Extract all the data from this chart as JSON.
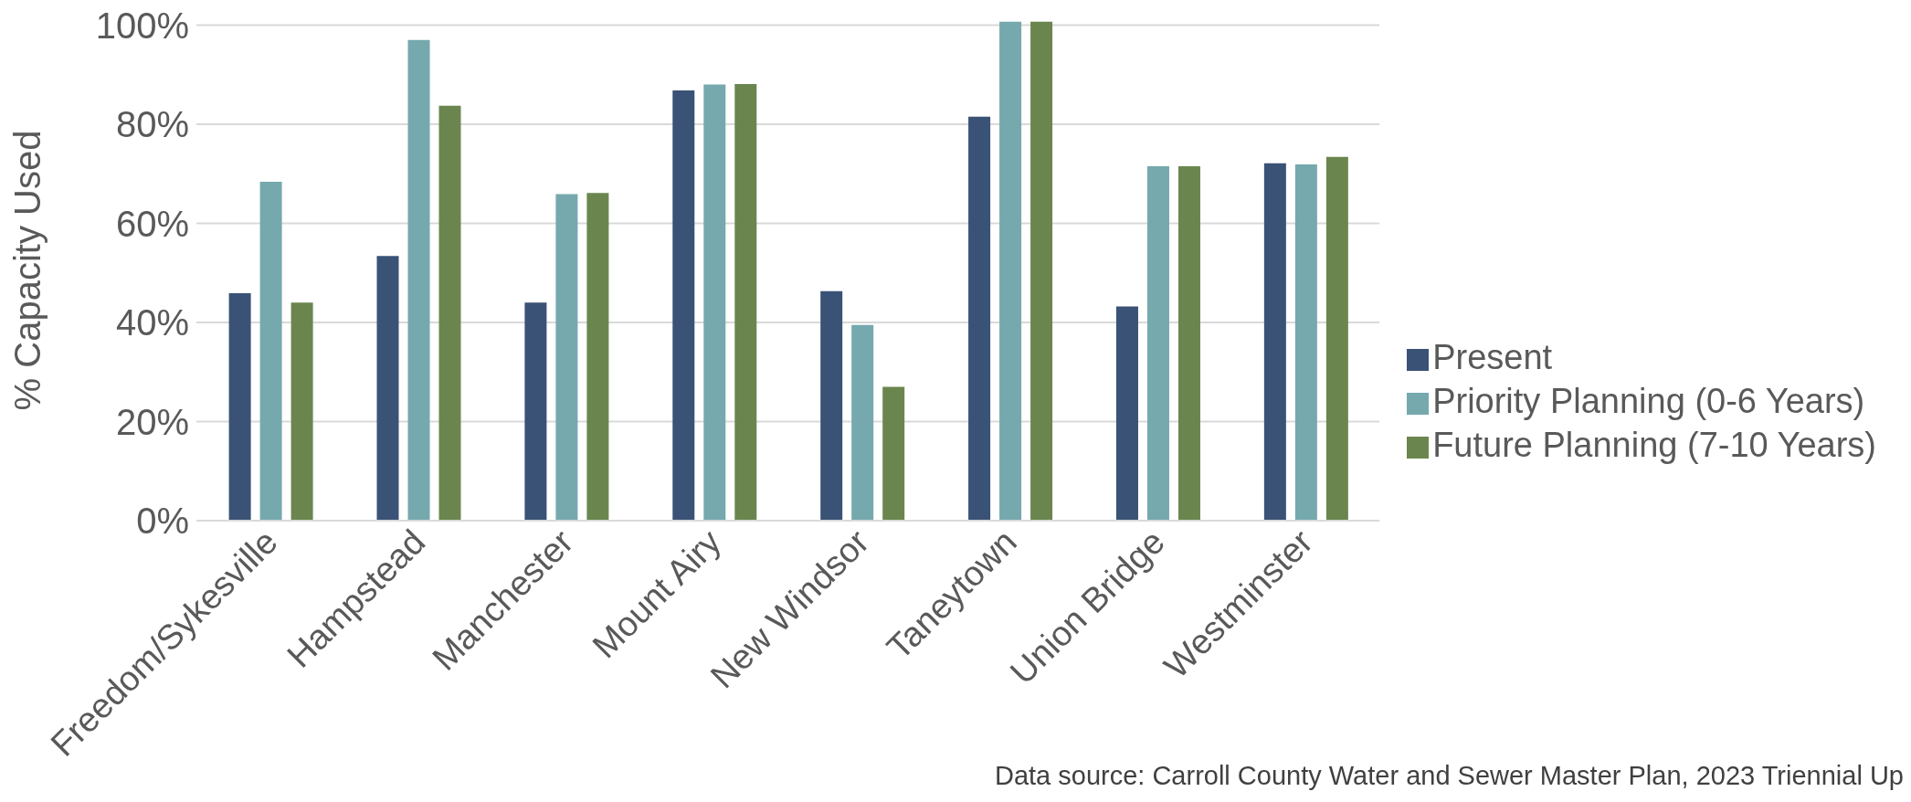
{
  "chart_data": {
    "type": "bar",
    "ylabel": "% Capacity Used",
    "categories": [
      "Freedom/Sykesville",
      "Hampstead",
      "Manchester",
      "Mount Airy",
      "New Windsor",
      "Taneytown",
      "Union Bridge",
      "Westminster"
    ],
    "series": [
      {
        "name": "Present",
        "color": "#3a5275",
        "values": [
          45.9,
          53.4,
          44.0,
          86.8,
          46.3,
          81.5,
          43.2,
          72.1
        ]
      },
      {
        "name": "Priority Planning (0-6 Years)",
        "color": "#75a9ad",
        "values": [
          68.4,
          97.0,
          65.9,
          88.0,
          39.5,
          100.7,
          71.5,
          71.9
        ]
      },
      {
        "name": "Future Planning (7-10 Years)",
        "color": "#6a864e",
        "values": [
          44.0,
          83.7,
          66.1,
          88.1,
          27.0,
          100.7,
          71.5,
          73.4
        ]
      }
    ],
    "ylim": [
      0,
      101
    ],
    "yticks": [
      {
        "value": 0,
        "label": "0%"
      },
      {
        "value": 20,
        "label": "20%"
      },
      {
        "value": 40,
        "label": "40%"
      },
      {
        "value": 60,
        "label": "60%"
      },
      {
        "value": 80,
        "label": "80%"
      },
      {
        "value": 100,
        "label": "100%"
      }
    ],
    "grid": "y",
    "legend": "right",
    "annotations": [
      "Data source: Carroll County Water and Sewer Master Plan, 2023 Triennial Up"
    ]
  }
}
